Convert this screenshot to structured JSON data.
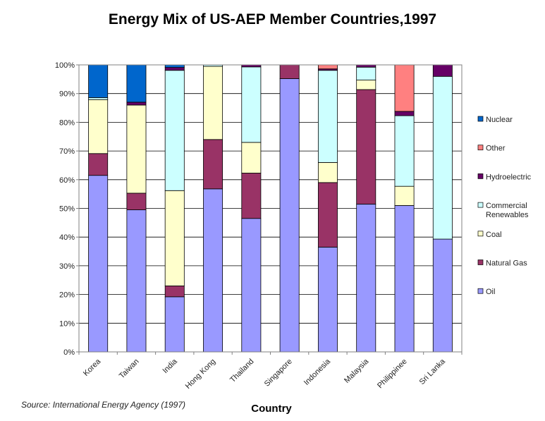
{
  "chart_data": {
    "type": "bar",
    "stacked": true,
    "percent_stacked": true,
    "title": "Energy Mix of US-AEP Member Countries,1997",
    "xlabel": "Country",
    "ylabel": "",
    "ylim": [
      0,
      100
    ],
    "yticks": [
      "0%",
      "10%",
      "20%",
      "30%",
      "40%",
      "50%",
      "60%",
      "70%",
      "80%",
      "90%",
      "100%"
    ],
    "grid": true,
    "legend_position": "right",
    "source": "Source:  International Energy Agency (1997)",
    "categories": [
      "Korea",
      "Taiwan",
      "India",
      "Hong Kong",
      "Thailand",
      "Singapore",
      "Indonesia",
      "Malaysia",
      "Philippinee",
      "Sri Lanka"
    ],
    "series": [
      {
        "name": "Oil",
        "color": "#9999ff",
        "values": [
          61.5,
          49.5,
          19.2,
          56.8,
          46.5,
          95.2,
          36.5,
          51.5,
          51.0,
          39.3
        ]
      },
      {
        "name": "Natural Gas",
        "color": "#993366",
        "values": [
          7.6,
          5.8,
          3.8,
          17.2,
          15.8,
          4.8,
          22.5,
          39.9,
          0,
          0
        ]
      },
      {
        "name": "Coal",
        "color": "#ffffcc",
        "values": [
          18.8,
          30.7,
          33.2,
          25.5,
          10.7,
          0,
          7.0,
          3.3,
          6.7,
          0
        ]
      },
      {
        "name": "Commercial Renewables",
        "color": "#ccffff",
        "values": [
          0.7,
          0,
          41.9,
          0.5,
          26.3,
          0,
          32.1,
          4.5,
          24.6,
          56.7
        ]
      },
      {
        "name": "Hydroelectric",
        "color": "#660066",
        "values": [
          0,
          1.0,
          1.0,
          0,
          0.7,
          0,
          0.5,
          0.8,
          1.5,
          4.0
        ]
      },
      {
        "name": "Other",
        "color": "#ff8080",
        "values": [
          0,
          0,
          0,
          0,
          0,
          0,
          1.4,
          0,
          16.2,
          0
        ]
      },
      {
        "name": "Nuclear",
        "color": "#0066cc",
        "values": [
          11.4,
          13.0,
          0.9,
          0,
          0,
          0,
          0,
          0,
          0,
          0
        ]
      }
    ],
    "legend": [
      {
        "label": "Nuclear",
        "color": "#0066cc"
      },
      {
        "label": "Other",
        "color": "#ff8080"
      },
      {
        "label": "Hydroelectric",
        "color": "#660066"
      },
      {
        "label": "Commercial\nRenewables",
        "color": "#ccffff"
      },
      {
        "label": "Coal",
        "color": "#ffffcc"
      },
      {
        "label": "Natural Gas",
        "color": "#993366"
      },
      {
        "label": "Oil",
        "color": "#9999ff"
      }
    ]
  }
}
